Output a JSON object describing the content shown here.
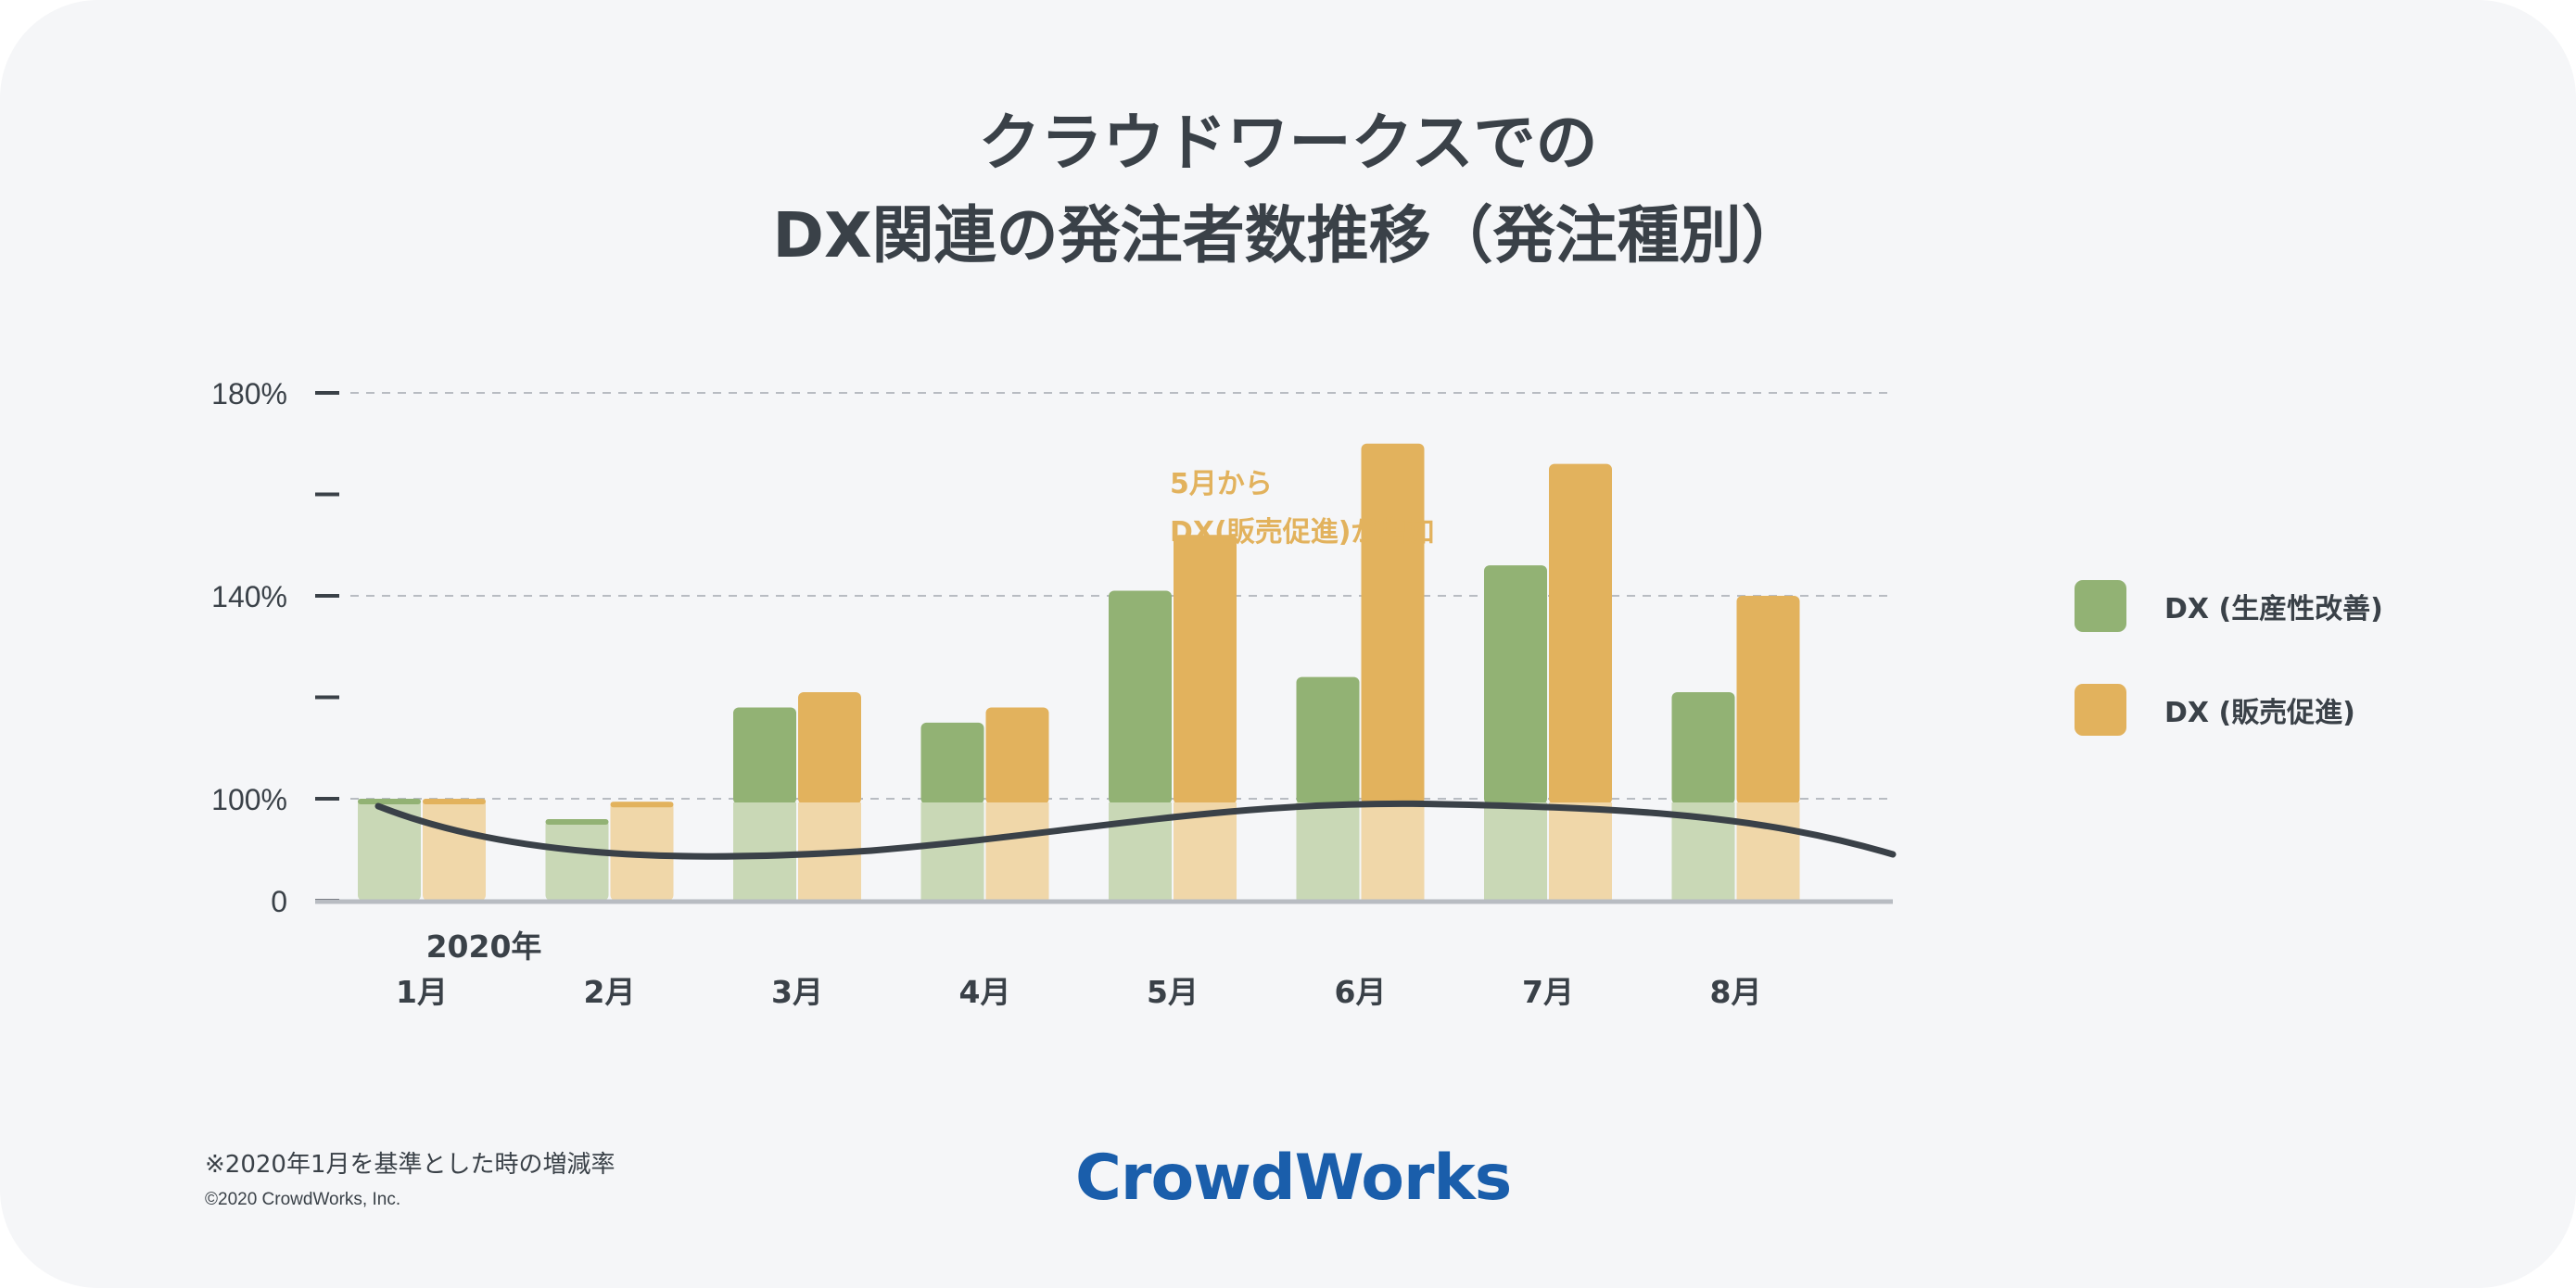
{
  "chart_data": {
    "type": "bar",
    "title_lines": [
      "クラウドワークスでの",
      "DX関連の発注者数推移（発注種別）"
    ],
    "categories": [
      "1月",
      "2月",
      "3月",
      "4月",
      "5月",
      "6月",
      "7月",
      "8月"
    ],
    "year_label": "2020年",
    "series": [
      {
        "name": "DX (生産性改善)",
        "color": "#92b274",
        "light_color": "#c9d8b6",
        "values": [
          100,
          80,
          118,
          115,
          141,
          124,
          146,
          121
        ]
      },
      {
        "name": "DX (販売促進)",
        "color": "#e2b25d",
        "light_color": "#f0d7a9",
        "values": [
          100,
          97,
          121,
          118,
          152,
          170,
          166,
          140
        ]
      }
    ],
    "trend_line_color": "#3a4148",
    "y_ticks": [
      {
        "value": 0,
        "label": "0"
      },
      {
        "value": 100,
        "label": "100%"
      },
      {
        "value": 120,
        "label": ""
      },
      {
        "value": 140,
        "label": "140%"
      },
      {
        "value": 160,
        "label": ""
      },
      {
        "value": 180,
        "label": "180%"
      }
    ],
    "grid": true,
    "legend_position": "right",
    "annotation": {
      "lines": [
        "5月から",
        "DX(販売促進)が増加"
      ],
      "color": "#e2b25d"
    },
    "footnote": "※2020年1月を基準とした時の増減率"
  },
  "copyright": "©2020 CrowdWorks, Inc.",
  "logo_text": "CrowdWorks"
}
